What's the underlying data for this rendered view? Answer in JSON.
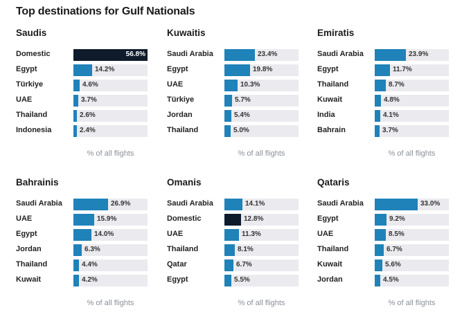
{
  "title": "Top destinations for Gulf Nationals",
  "colors": {
    "bar": "#1f82b9",
    "highlight": "#0f1a2a",
    "track": "#ebebef"
  },
  "chart_data": {
    "type": "bar",
    "orientation": "horizontal",
    "xlim": [
      0,
      57
    ],
    "xlabel": "% of all flights",
    "panels": [
      {
        "name": "Saudis",
        "categories": [
          "Domestic",
          "Egypt",
          "Türkiye",
          "UAE",
          "Thailand",
          "Indonesia"
        ],
        "values": [
          56.8,
          14.2,
          4.6,
          3.7,
          2.6,
          2.4
        ],
        "labels": [
          "56.8%",
          "14.2%",
          "4.6%",
          "3.7%",
          "2.6%",
          "2.4%"
        ],
        "highlight": [
          0
        ]
      },
      {
        "name": "Kuwaitis",
        "categories": [
          "Saudi Arabia",
          "Egypt",
          "UAE",
          "Türkiye",
          "Jordan",
          "Thailand"
        ],
        "values": [
          23.4,
          19.8,
          10.3,
          5.7,
          5.4,
          5.0
        ],
        "labels": [
          "23.4%",
          "19.8%",
          "10.3%",
          "5.7%",
          "5.4%",
          "5.0%"
        ],
        "highlight": []
      },
      {
        "name": "Emiratis",
        "categories": [
          "Saudi Arabia",
          "Egypt",
          "Thailand",
          "Kuwait",
          "India",
          "Bahrain"
        ],
        "values": [
          23.9,
          11.7,
          8.7,
          4.8,
          4.1,
          3.7
        ],
        "labels": [
          "23.9%",
          "11.7%",
          "8.7%",
          "4.8%",
          "4.1%",
          "3.7%"
        ],
        "highlight": []
      },
      {
        "name": "Bahrainis",
        "categories": [
          "Saudi Arabia",
          "UAE",
          "Egypt",
          "Jordan",
          "Thailand",
          "Kuwait"
        ],
        "values": [
          26.9,
          15.9,
          14.0,
          6.3,
          4.4,
          4.2
        ],
        "labels": [
          "26.9%",
          "15.9%",
          "14.0%",
          "6.3%",
          "4.4%",
          "4.2%"
        ],
        "highlight": []
      },
      {
        "name": "Omanis",
        "categories": [
          "Saudi Arabia",
          "Domestic",
          "UAE",
          "Thailand",
          "Qatar",
          "Egypt"
        ],
        "values": [
          14.1,
          12.8,
          11.3,
          8.1,
          6.7,
          5.5
        ],
        "labels": [
          "14.1%",
          "12.8%",
          "11.3%",
          "8.1%",
          "6.7%",
          "5.5%"
        ],
        "highlight": [
          1
        ]
      },
      {
        "name": "Qataris",
        "categories": [
          "Saudi Arabia",
          "Egypt",
          "UAE",
          "Thailand",
          "Kuwait",
          "Jordan"
        ],
        "values": [
          33.0,
          9.2,
          8.5,
          6.7,
          5.6,
          4.5
        ],
        "labels": [
          "33.0%",
          "9.2%",
          "8.5%",
          "6.7%",
          "5.6%",
          "4.5%"
        ],
        "highlight": []
      }
    ]
  }
}
